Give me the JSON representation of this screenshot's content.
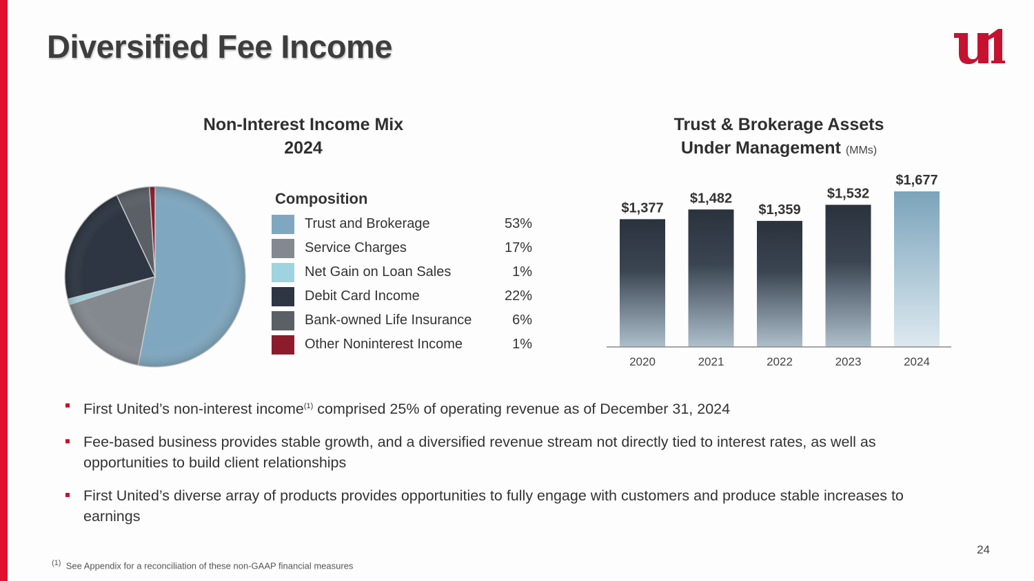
{
  "slide": {
    "title": "Diversified Fee Income",
    "page_number": "24",
    "colors": {
      "accent": "#e0102f",
      "logo": "#c41230"
    }
  },
  "pie_title": {
    "line1": "Non-Interest Income Mix",
    "line2": "2024"
  },
  "bar_title": {
    "line1": "Trust & Brokerage Assets",
    "line2": "Under Management",
    "units": "(MMs)"
  },
  "legend": {
    "heading": "Composition"
  },
  "bullets": [
    {
      "before": "First United’s non-interest income",
      "sup": "(1)",
      "after": " comprised 25% of operating revenue as of December 31, 2024"
    },
    {
      "before": "Fee-based business provides stable growth, and a diversified revenue stream not directly tied to interest rates, as well as opportunities to build client relationships",
      "sup": "",
      "after": ""
    },
    {
      "before": "First United’s diverse array of products provides opportunities to fully engage with customers and produce stable increases to earnings",
      "sup": "",
      "after": ""
    }
  ],
  "footnote": {
    "sup": "(1)",
    "text": "See Appendix for a reconciliation of these non-GAAP financial measures"
  },
  "chart_data": [
    {
      "type": "pie",
      "title": "Non-Interest Income Mix 2024",
      "labels": [
        "Trust and Brokerage",
        "Service Charges",
        "Net Gain on Loan Sales",
        "Debit Card Income",
        "Bank-owned Life Insurance",
        "Other Noninterest Income"
      ],
      "values": [
        53,
        17,
        1,
        22,
        6,
        1
      ],
      "value_labels": [
        "53%",
        "17%",
        "1%",
        "22%",
        "6%",
        "1%"
      ],
      "colors": [
        "#7fa7bf",
        "#83898f",
        "#9fd3e0",
        "#2d3642",
        "#5a6066",
        "#8c1c2c"
      ],
      "legend_title": "Composition",
      "legend_position": "right"
    },
    {
      "type": "bar",
      "title": "Trust & Brokerage Assets Under Management (MMs)",
      "categories": [
        "2020",
        "2021",
        "2022",
        "2023",
        "2024"
      ],
      "values": [
        1377,
        1482,
        1359,
        1532,
        1677
      ],
      "value_labels": [
        "$1,377",
        "$1,482",
        "$1,359",
        "$1,532",
        "$1,677"
      ],
      "ylim": [
        0,
        1677
      ],
      "grid": false
    }
  ]
}
